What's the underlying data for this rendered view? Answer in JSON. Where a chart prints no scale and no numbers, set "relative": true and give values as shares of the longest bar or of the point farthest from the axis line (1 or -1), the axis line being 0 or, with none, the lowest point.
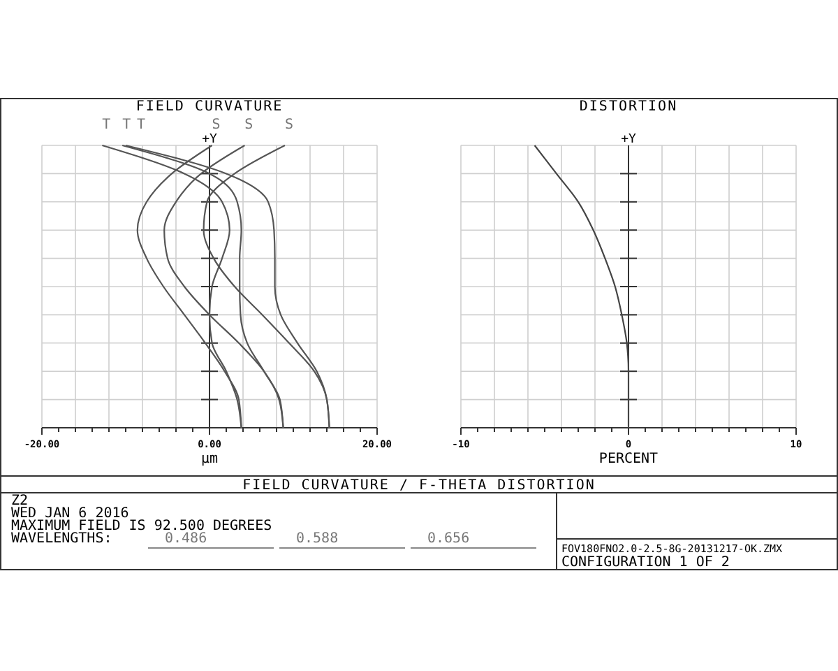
{
  "chart_data": [
    {
      "type": "line",
      "title": "FIELD CURVATURE",
      "xlabel": "µm",
      "ylabel": "+Y",
      "relative": true,
      "grid": true,
      "xlim": [
        -20,
        20
      ],
      "xticks": [
        {
          "value": -20,
          "label": "-20.00"
        },
        {
          "value": 0,
          "label": "0.00"
        },
        {
          "value": 20,
          "label": "20.00"
        }
      ],
      "series": [
        {
          "name": "S",
          "color": "#555555",
          "x": [
            3.8,
            3.5,
            1.8,
            -0.5,
            -3,
            -5.5,
            -7.5,
            -8.6,
            -7.5,
            -4.5,
            0.3
          ],
          "values": [
            0,
            0.1,
            0.2,
            0.3,
            0.4,
            0.5,
            0.6,
            0.7,
            0.8,
            0.9,
            1
          ]
        },
        {
          "name": "T",
          "color": "#555555",
          "x": [
            3.8,
            3.3,
            2,
            0.3,
            0,
            0.3,
            1.5,
            2.4,
            1.5,
            -3,
            -12.8
          ],
          "values": [
            0,
            0.1,
            0.2,
            0.3,
            0.4,
            0.5,
            0.6,
            0.7,
            0.8,
            0.9,
            1
          ]
        },
        {
          "name": "S",
          "color": "#555555",
          "x": [
            8.8,
            8.3,
            6.5,
            3.5,
            0,
            -3,
            -5,
            -5.4,
            -4,
            -1,
            4.2
          ],
          "values": [
            0,
            0.1,
            0.2,
            0.3,
            0.4,
            0.5,
            0.6,
            0.7,
            0.8,
            0.9,
            1
          ]
        },
        {
          "name": "T",
          "color": "#555555",
          "x": [
            8.8,
            8.4,
            6.5,
            4.5,
            3.7,
            3.6,
            3.6,
            3.8,
            3.3,
            0,
            -10.4
          ],
          "values": [
            0,
            0.1,
            0.2,
            0.3,
            0.4,
            0.5,
            0.6,
            0.7,
            0.8,
            0.9,
            1
          ]
        },
        {
          "name": "S",
          "color": "#555555",
          "x": [
            14.3,
            14,
            12.5,
            9.5,
            6.3,
            3,
            0.5,
            -0.7,
            -0.3,
            3,
            9
          ],
          "values": [
            0,
            0.1,
            0.2,
            0.3,
            0.4,
            0.5,
            0.6,
            0.7,
            0.8,
            0.9,
            1
          ]
        },
        {
          "name": "T",
          "color": "#555555",
          "x": [
            14.3,
            14,
            12.8,
            10.5,
            8.5,
            7.8,
            7.8,
            7.7,
            7,
            2,
            -10
          ],
          "values": [
            0,
            0.1,
            0.2,
            0.3,
            0.4,
            0.5,
            0.6,
            0.7,
            0.8,
            0.9,
            1
          ]
        }
      ],
      "annotations": [
        "FIELD CURVATURE / F-THETA DISTORTION",
        "Z2",
        "WED JAN 6 2016",
        "MAXIMUM FIELD IS 92.500 DEGREES",
        "WAVELENGTHS:",
        "0.486",
        "0.588",
        "0.656",
        "FOV180FNO2.0-2.5-8G-20131217-OK.ZMX",
        "CONFIGURATION 1 OF 2"
      ]
    },
    {
      "type": "line",
      "title": "DISTORTION",
      "xlabel": "PERCENT",
      "ylabel": "+Y",
      "relative": true,
      "grid": true,
      "xlim": [
        -10,
        10
      ],
      "xticks": [
        -10,
        0,
        10
      ],
      "series": [
        {
          "color": "#444444",
          "x": [
            0,
            0,
            0,
            -0.1,
            -0.4,
            -0.8,
            -1.4,
            -2.1,
            -3,
            -4.3,
            -5.6
          ],
          "values": [
            0,
            0.1,
            0.2,
            0.3,
            0.4,
            0.5,
            0.6,
            0.7,
            0.8,
            0.9,
            1
          ]
        }
      ]
    }
  ]
}
